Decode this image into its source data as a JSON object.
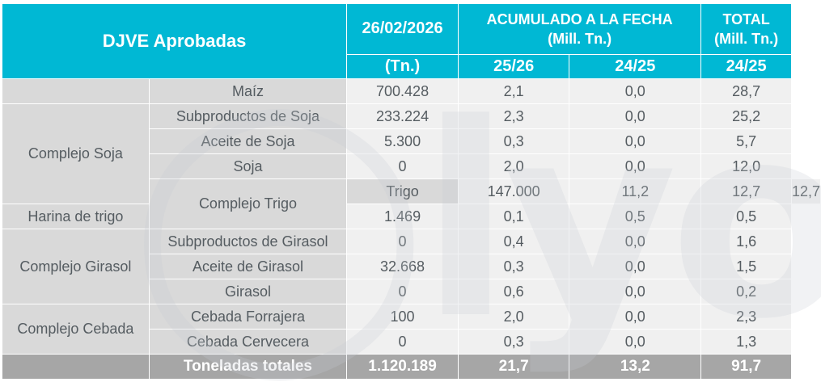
{
  "header": {
    "title": "DJVE Aprobadas",
    "date": "26/02/2026",
    "date_unit": "(Tn.)",
    "acumulado_line1": "ACUMULADO A LA FECHA",
    "acumulado_line2": "(Mill. Tn.)",
    "total_line1": "TOTAL",
    "total_line2": "(Mill. Tn.)",
    "sub_2526": "25/26",
    "sub_2425": "24/25",
    "sub_total": "24/25"
  },
  "groups": {
    "soja": "Complejo Soja",
    "trigo": "Complejo Trigo",
    "girasol": "Complejo Girasol",
    "cebada": "Complejo Cebada"
  },
  "rows": [
    {
      "product": "Maíz",
      "tn": "700.428",
      "acc2526": "2,1",
      "acc2425": "0,0",
      "total2425": "28,7"
    },
    {
      "product": "Subproductos de Soja",
      "tn": "233.224",
      "acc2526": "2,3",
      "acc2425": "0,0",
      "total2425": "25,2"
    },
    {
      "product": "Aceite de Soja",
      "tn": "5.300",
      "acc2526": "0,3",
      "acc2425": "0,0",
      "total2425": "5,7"
    },
    {
      "product": "Soja",
      "tn": "0",
      "acc2526": "2,0",
      "acc2425": "0,0",
      "total2425": "12,0"
    },
    {
      "product": "Trigo",
      "tn": "147.000",
      "acc2526": "11,2",
      "acc2425": "12,7",
      "total2425": "12,7"
    },
    {
      "product": "Harina de trigo",
      "tn": "1.469",
      "acc2526": "0,1",
      "acc2425": "0,5",
      "total2425": "0,5"
    },
    {
      "product": "Subproductos de Girasol",
      "tn": "0",
      "acc2526": "0,4",
      "acc2425": "0,0",
      "total2425": "1,6"
    },
    {
      "product": "Aceite de Girasol",
      "tn": "32.668",
      "acc2526": "0,3",
      "acc2425": "0,0",
      "total2425": "1,5"
    },
    {
      "product": "Girasol",
      "tn": "0",
      "acc2526": "0,6",
      "acc2425": "0,0",
      "total2425": "0,2"
    },
    {
      "product": "Cebada Forrajera",
      "tn": "100",
      "acc2526": "2,0",
      "acc2425": "0,0",
      "total2425": "2,3"
    },
    {
      "product": "Cebada Cervecera",
      "tn": "0",
      "acc2526": "0,3",
      "acc2425": "0,0",
      "total2425": "1,3"
    }
  ],
  "totals": {
    "label": "Toneladas totales",
    "tn": "1.120.189",
    "acc2526": "21,7",
    "acc2425": "13,2",
    "total2425": "91,7"
  },
  "colors": {
    "header_bg": "#00b8d4",
    "label_bg": "#d9d9d9",
    "value_bg": "#f0f0f0",
    "total_bg": "#a6a6a6"
  }
}
